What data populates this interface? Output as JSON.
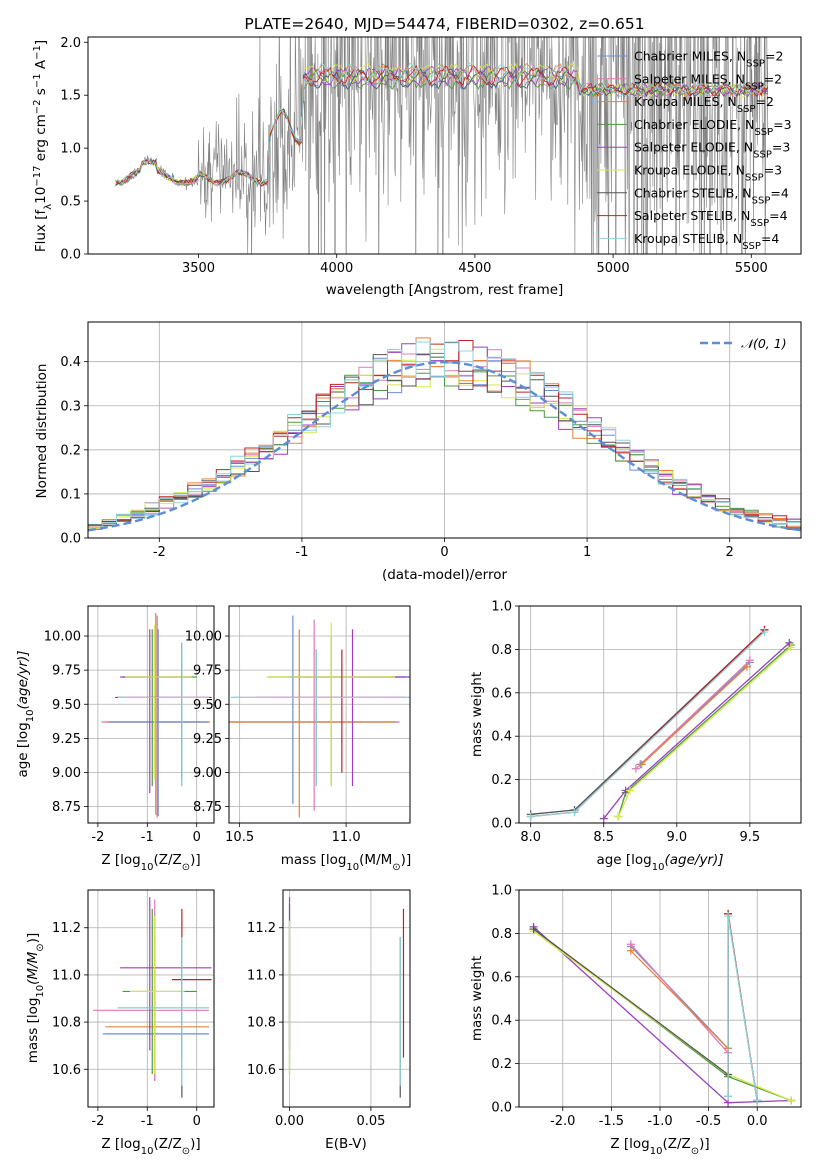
{
  "colors": {
    "chabrier_miles": "#6a8fd8",
    "salpeter_miles": "#e07ab8",
    "kroupa_miles": "#e8833a",
    "chabrier_elodie": "#4d9a3c",
    "salpeter_elodie": "#9d3fbf",
    "kroupa_elodie": "#d6e84e",
    "chabrier_stelib": "#555555",
    "salpeter_stelib": "#c22020",
    "kroupa_stelib": "#8fd4d8",
    "gauss": "#5b8ed6",
    "grid": "#b0b0b0",
    "data": "#808080"
  },
  "chart_data": [
    {
      "id": "spectrum",
      "type": "line",
      "title": "PLATE=2640, MJD=54474, FIBERID=0302, z=0.651",
      "xlabel": "wavelength [Angstrom, rest frame]",
      "ylabel_pre": "Flux [f",
      "ylabel_sub": "λ",
      "ylabel_mid": "10",
      "ylabel_sup1": "−17",
      "ylabel_post": " erg cm",
      "ylabel_sup2": "−2",
      "ylabel_s": " s",
      "ylabel_sup3": "−1",
      "ylabel_A": " A",
      "ylabel_sup4": "−1",
      "ylabel_end": "]",
      "xlim": [
        3100,
        5680
      ],
      "ylim": [
        0,
        2.05
      ],
      "xticks": [
        3500,
        4000,
        4500,
        5000,
        5500
      ],
      "yticks": [
        0.0,
        0.5,
        1.0,
        1.5,
        2.0
      ],
      "grid": false,
      "legend_position": "top-right",
      "legend": [
        {
          "name": "Chabrier MILES, N",
          "sub": "SSP",
          "tail": "=2",
          "key": "chabrier_miles"
        },
        {
          "name": "Salpeter MILES, N",
          "sub": "SSP",
          "tail": "=2",
          "key": "salpeter_miles"
        },
        {
          "name": "Kroupa MILES, N",
          "sub": "SSP",
          "tail": "=2",
          "key": "kroupa_miles"
        },
        {
          "name": "Chabrier ELODIE, N",
          "sub": "SSP",
          "tail": "=3",
          "key": "chabrier_elodie"
        },
        {
          "name": "Salpeter ELODIE, N",
          "sub": "SSP",
          "tail": "=3",
          "key": "salpeter_elodie"
        },
        {
          "name": "Kroupa ELODIE, N",
          "sub": "SSP",
          "tail": "=3",
          "key": "kroupa_elodie"
        },
        {
          "name": "Chabrier STELIB, N",
          "sub": "SSP",
          "tail": "=4",
          "key": "chabrier_stelib"
        },
        {
          "name": "Salpeter STELIB, N",
          "sub": "SSP",
          "tail": "=4",
          "key": "salpeter_stelib"
        },
        {
          "name": "Kroupa STELIB, N",
          "sub": "SSP",
          "tail": "=4",
          "key": "kroupa_stelib"
        }
      ],
      "data_range": [
        3200,
        5560
      ],
      "model_segments": [
        {
          "x": [
            3200,
            3750
          ],
          "level": [
            0.72,
            0.84
          ],
          "key": "kroupa_stelib"
        },
        {
          "x": [
            3500,
            3760
          ],
          "level": [
            0.66,
            0.75
          ],
          "key": "kroupa_miles"
        },
        {
          "x": [
            3760,
            3900
          ],
          "level": [
            1.05,
            1.35
          ],
          "key": "kroupa_miles"
        },
        {
          "x": [
            3900,
            4900
          ],
          "level": [
            1.55,
            1.82
          ],
          "key": "kroupa_miles"
        },
        {
          "x": [
            4900,
            5560
          ],
          "level": [
            1.48,
            1.62
          ],
          "key": "kroupa_miles"
        }
      ]
    },
    {
      "id": "residuals",
      "type": "histogram",
      "xlabel": "(data-model)/error",
      "ylabel": "Normed distribution",
      "xlim": [
        -2.5,
        2.5
      ],
      "ylim": [
        0,
        0.49
      ],
      "xticks": [
        -2,
        -1,
        0,
        1,
        2
      ],
      "yticks": [
        0.0,
        0.1,
        0.2,
        0.3,
        0.4
      ],
      "grid": true,
      "legend_position": "top-right",
      "legend_label": "𝒩(0, 1)",
      "bin_width": 0.1
    },
    {
      "id": "age-vs-Z",
      "type": "errorbar",
      "xlabel_pre": "Z [log",
      "xlabel_sub": "10",
      "xlabel_post": "(Z/Z",
      "xlabel_sub2": "⊙",
      "xlabel_end": ")]",
      "ylabel_pre": "age  [log",
      "ylabel_sub": "10",
      "ylabel_post": "(age/yr)]",
      "xlim": [
        -2.2,
        0.35
      ],
      "ylim": [
        8.63,
        10.22
      ],
      "xticks": [
        -2,
        -1,
        0
      ],
      "yticks": [
        8.75,
        9.0,
        9.25,
        9.5,
        9.75,
        10.0
      ],
      "tick_labels": [
        "8.75",
        "9.00",
        "9.25",
        "9.50",
        "9.75",
        "10.00"
      ],
      "grid": true,
      "points": [
        {
          "x": -0.83,
          "y": 9.37,
          "xerr": [
            1.1,
            1.1
          ],
          "yerr": [
            0.68,
            0.8
          ],
          "key": "salpeter_miles"
        },
        {
          "x": -0.8,
          "y": 9.37,
          "xerr": [
            1.05,
            1.05
          ],
          "yerr": [
            0.7,
            0.78
          ],
          "key": "kroupa_miles"
        },
        {
          "x": -0.78,
          "y": 9.37,
          "xerr": [
            1.0,
            1.0
          ],
          "yerr": [
            0.69,
            0.68
          ],
          "key": "chabrier_miles"
        },
        {
          "x": -0.9,
          "y": 9.7,
          "xerr": [
            0.6,
            0.9
          ],
          "yerr": [
            0.8,
            0.35
          ],
          "key": "chabrier_elodie"
        },
        {
          "x": -0.95,
          "y": 9.7,
          "xerr": [
            0.6,
            0.85
          ],
          "yerr": [
            0.85,
            0.35
          ],
          "key": "salpeter_elodie"
        },
        {
          "x": -0.85,
          "y": 9.7,
          "xerr": [
            0.6,
            0.75
          ],
          "yerr": [
            0.75,
            0.38
          ],
          "key": "kroupa_elodie"
        },
        {
          "x": -0.3,
          "y": 9.55,
          "xerr": [
            1.3,
            0.55
          ],
          "yerr": [
            0.65,
            0.4
          ],
          "key": "chabrier_stelib"
        },
        {
          "x": -0.3,
          "y": 9.55,
          "xerr": [
            1.35,
            0.6
          ],
          "yerr": [
            0.6,
            0.4
          ],
          "key": "salpeter_stelib"
        },
        {
          "x": -0.3,
          "y": 9.55,
          "xerr": [
            1.3,
            0.55
          ],
          "yerr": [
            0.65,
            0.4
          ],
          "key": "kroupa_stelib"
        }
      ]
    },
    {
      "id": "age-vs-mass",
      "type": "errorbar",
      "xlabel_pre": "mass [log",
      "xlabel_sub": "10",
      "xlabel_post": "(M/M",
      "xlabel_sub2": "⊙",
      "xlabel_end": ")]",
      "xlim": [
        10.45,
        11.3
      ],
      "ylim": [
        8.63,
        10.22
      ],
      "xticks": [
        10.5,
        11.0
      ],
      "tick_labels_x": [
        "10.5",
        "11.0"
      ],
      "yticks": [
        8.75,
        9.0,
        9.25,
        9.5,
        9.75,
        10.0
      ],
      "tick_labels": [
        "8.75",
        "9.00",
        "9.25",
        "9.50",
        "9.75",
        "10.00"
      ],
      "grid": true,
      "points": [
        {
          "x": 10.75,
          "y": 9.37,
          "xerr": [
            0.4,
            0.5
          ],
          "yerr": [
            0.6,
            0.78
          ],
          "key": "chabrier_miles"
        },
        {
          "x": 10.85,
          "y": 9.37,
          "xerr": [
            0.5,
            0.4
          ],
          "yerr": [
            0.65,
            0.75
          ],
          "key": "salpeter_miles"
        },
        {
          "x": 10.78,
          "y": 9.37,
          "xerr": [
            0.4,
            0.45
          ],
          "yerr": [
            0.7,
            0.68
          ],
          "key": "kroupa_miles"
        },
        {
          "x": 10.93,
          "y": 9.7,
          "xerr": [
            0.3,
            0.35
          ],
          "yerr": [
            0.8,
            0.3
          ],
          "key": "chabrier_elodie"
        },
        {
          "x": 11.03,
          "y": 9.7,
          "xerr": [
            0.3,
            0.35
          ],
          "yerr": [
            0.8,
            0.35
          ],
          "key": "salpeter_elodie"
        },
        {
          "x": 10.93,
          "y": 9.7,
          "xerr": [
            0.3,
            0.3
          ],
          "yerr": [
            0.8,
            0.4
          ],
          "key": "kroupa_elodie"
        },
        {
          "x": 10.86,
          "y": 9.55,
          "xerr": [
            0.4,
            0.5
          ],
          "yerr": [
            0.65,
            0.35
          ],
          "key": "chabrier_stelib"
        },
        {
          "x": 10.98,
          "y": 9.55,
          "xerr": [
            0.4,
            0.3
          ],
          "yerr": [
            0.55,
            0.35
          ],
          "key": "salpeter_stelib"
        },
        {
          "x": 10.86,
          "y": 9.55,
          "xerr": [
            0.4,
            0.45
          ],
          "yerr": [
            0.65,
            0.35
          ],
          "key": "kroupa_stelib"
        }
      ]
    },
    {
      "id": "weight-vs-age",
      "type": "line",
      "xlabel_pre": "age  [log",
      "xlabel_sub": "10",
      "xlabel_post": "(age/yr)]",
      "ylabel": "mass weight",
      "xlim": [
        7.92,
        9.85
      ],
      "ylim": [
        0,
        1.0
      ],
      "xticks": [
        8.0,
        8.5,
        9.0,
        9.5
      ],
      "yticks": [
        0.0,
        0.2,
        0.4,
        0.6,
        0.8,
        1.0
      ],
      "grid": true,
      "series": [
        {
          "key": "chabrier_miles",
          "x": [
            8.75,
            9.5
          ],
          "y": [
            0.27,
            0.74
          ]
        },
        {
          "key": "salpeter_miles",
          "x": [
            8.72,
            9.5
          ],
          "y": [
            0.25,
            0.75
          ]
        },
        {
          "key": "kroupa_miles",
          "x": [
            8.76,
            9.48
          ],
          "y": [
            0.27,
            0.72
          ]
        },
        {
          "key": "chabrier_elodie",
          "x": [
            8.6,
            8.65,
            9.78
          ],
          "y": [
            0.03,
            0.14,
            0.82
          ]
        },
        {
          "key": "salpeter_elodie",
          "x": [
            8.5,
            8.65,
            9.77
          ],
          "y": [
            0.02,
            0.15,
            0.83
          ]
        },
        {
          "key": "kroupa_elodie",
          "x": [
            8.6,
            8.68,
            9.78
          ],
          "y": [
            0.03,
            0.15,
            0.81
          ]
        },
        {
          "key": "chabrier_stelib",
          "x": [
            8.0,
            8.3,
            9.6
          ],
          "y": [
            0.04,
            0.06,
            0.89
          ]
        },
        {
          "key": "salpeter_stelib",
          "x": [
            8.0,
            8.3,
            9.6
          ],
          "y": [
            0.03,
            0.05,
            0.89
          ]
        },
        {
          "key": "kroupa_stelib",
          "x": [
            8.0,
            8.3,
            9.6
          ],
          "y": [
            0.03,
            0.05,
            0.88
          ]
        }
      ]
    },
    {
      "id": "mass-vs-Z",
      "type": "errorbar",
      "xlabel_pre": "Z [log",
      "xlabel_sub": "10",
      "xlabel_post": "(Z/Z",
      "xlabel_sub2": "⊙",
      "xlabel_end": ")]",
      "ylabel_pre": "mass [log",
      "ylabel_sub": "10",
      "ylabel_post": "(M/M",
      "ylabel_sub2": "⊙",
      "ylabel_end": ")]",
      "xlim": [
        -2.2,
        0.35
      ],
      "ylim": [
        10.44,
        11.36
      ],
      "xticks": [
        -2,
        -1,
        0
      ],
      "yticks": [
        10.6,
        10.8,
        11.0,
        11.2
      ],
      "tick_labels": [
        "10.6",
        "10.8",
        "11.0",
        "11.2"
      ],
      "grid": true,
      "points": [
        {
          "x": -0.85,
          "y": 10.75,
          "xerr": [
            1.05,
            1.1
          ],
          "yerr": [
            0.2,
            0.5
          ],
          "key": "chabrier_miles"
        },
        {
          "x": -0.85,
          "y": 10.85,
          "xerr": [
            1.25,
            1.1
          ],
          "yerr": [
            0.3,
            0.47
          ],
          "key": "salpeter_miles"
        },
        {
          "x": -0.85,
          "y": 10.78,
          "xerr": [
            1.0,
            1.1
          ],
          "yerr": [
            0.2,
            0.4
          ],
          "key": "kroupa_miles"
        },
        {
          "x": -0.9,
          "y": 10.93,
          "xerr": [
            0.6,
            0.9
          ],
          "yerr": [
            0.35,
            0.35
          ],
          "key": "chabrier_elodie"
        },
        {
          "x": -0.95,
          "y": 11.03,
          "xerr": [
            0.6,
            1.25
          ],
          "yerr": [
            0.35,
            0.3
          ],
          "key": "salpeter_elodie"
        },
        {
          "x": -0.85,
          "y": 10.93,
          "xerr": [
            0.5,
            0.6
          ],
          "yerr": [
            0.35,
            0.32
          ],
          "key": "kroupa_elodie"
        },
        {
          "x": -0.3,
          "y": 10.86,
          "xerr": [
            1.3,
            0.55
          ],
          "yerr": [
            0.38,
            0.3
          ],
          "key": "chabrier_stelib"
        },
        {
          "x": -0.3,
          "y": 10.98,
          "xerr": [
            0.2,
            0.6
          ],
          "yerr": [
            0.33,
            0.3
          ],
          "key": "salpeter_stelib"
        },
        {
          "x": -0.3,
          "y": 10.86,
          "xerr": [
            1.3,
            0.55
          ],
          "yerr": [
            0.33,
            0.3
          ],
          "key": "kroupa_stelib"
        }
      ]
    },
    {
      "id": "mass-vs-ebv",
      "type": "errorbar",
      "xlabel": "E(B-V)",
      "xlim": [
        -0.004,
        0.074
      ],
      "ylim": [
        10.44,
        11.36
      ],
      "xticks": [
        0.0,
        0.05
      ],
      "tick_labels_x": [
        "0.00",
        "0.05"
      ],
      "yticks": [
        10.6,
        10.8,
        11.0,
        11.2
      ],
      "tick_labels": [
        "10.6",
        "10.8",
        "11.0",
        "11.2"
      ],
      "grid": true,
      "points": [
        {
          "x": 0.0,
          "y": 10.93,
          "yerr": [
            0.35,
            0.37
          ],
          "key": "chabrier_elodie"
        },
        {
          "x": 0.0,
          "y": 11.03,
          "yerr": [
            0.35,
            0.3
          ],
          "key": "salpeter_elodie"
        },
        {
          "x": 0.0,
          "y": 10.93,
          "yerr": [
            0.35,
            0.3
          ],
          "key": "kroupa_elodie"
        },
        {
          "x": 0.068,
          "y": 10.86,
          "yerr": [
            0.38,
            0.3
          ],
          "key": "chabrier_stelib"
        },
        {
          "x": 0.07,
          "y": 10.98,
          "yerr": [
            0.33,
            0.3
          ],
          "key": "salpeter_stelib"
        },
        {
          "x": 0.068,
          "y": 10.86,
          "yerr": [
            0.33,
            0.3
          ],
          "key": "kroupa_stelib"
        }
      ]
    },
    {
      "id": "weight-vs-Z",
      "type": "line",
      "xlabel_pre": "Z [log",
      "xlabel_sub": "10",
      "xlabel_post": "(Z/Z",
      "xlabel_sub2": "⊙",
      "xlabel_end": ")]",
      "ylabel": "mass weight",
      "xlim": [
        -2.45,
        0.45
      ],
      "ylim": [
        0,
        1.0
      ],
      "xticks": [
        -2.0,
        -1.5,
        -1.0,
        -0.5,
        0.0
      ],
      "yticks": [
        0.0,
        0.2,
        0.4,
        0.6,
        0.8,
        1.0
      ],
      "grid": true,
      "series": [
        {
          "key": "chabrier_miles",
          "x": [
            -1.3,
            -0.3
          ],
          "y": [
            0.74,
            0.27
          ]
        },
        {
          "key": "salpeter_miles",
          "x": [
            -1.3,
            -0.3
          ],
          "y": [
            0.75,
            0.25
          ]
        },
        {
          "key": "kroupa_miles",
          "x": [
            -1.3,
            -0.3
          ],
          "y": [
            0.72,
            0.27
          ]
        },
        {
          "key": "chabrier_elodie",
          "x": [
            -2.3,
            -0.3,
            0.35
          ],
          "y": [
            0.82,
            0.14,
            0.03
          ]
        },
        {
          "key": "salpeter_elodie",
          "x": [
            -2.3,
            -0.3,
            0.35
          ],
          "y": [
            0.83,
            0.02,
            0.03
          ]
        },
        {
          "key": "kroupa_elodie",
          "x": [
            -2.3,
            -0.3,
            0.35
          ],
          "y": [
            0.81,
            0.15,
            0.03
          ]
        },
        {
          "key": "chabrier_stelib",
          "x": [
            -2.3,
            -0.3,
            -0.3,
            0.0
          ],
          "y": [
            0.82,
            0.15,
            0.89,
            0.03
          ]
        },
        {
          "key": "salpeter_stelib",
          "x": [
            -0.3,
            -0.3,
            0.0
          ],
          "y": [
            0.05,
            0.89,
            0.03
          ]
        },
        {
          "key": "kroupa_stelib",
          "x": [
            -0.3,
            -0.3,
            0.0
          ],
          "y": [
            0.05,
            0.88,
            0.03
          ]
        }
      ]
    }
  ]
}
